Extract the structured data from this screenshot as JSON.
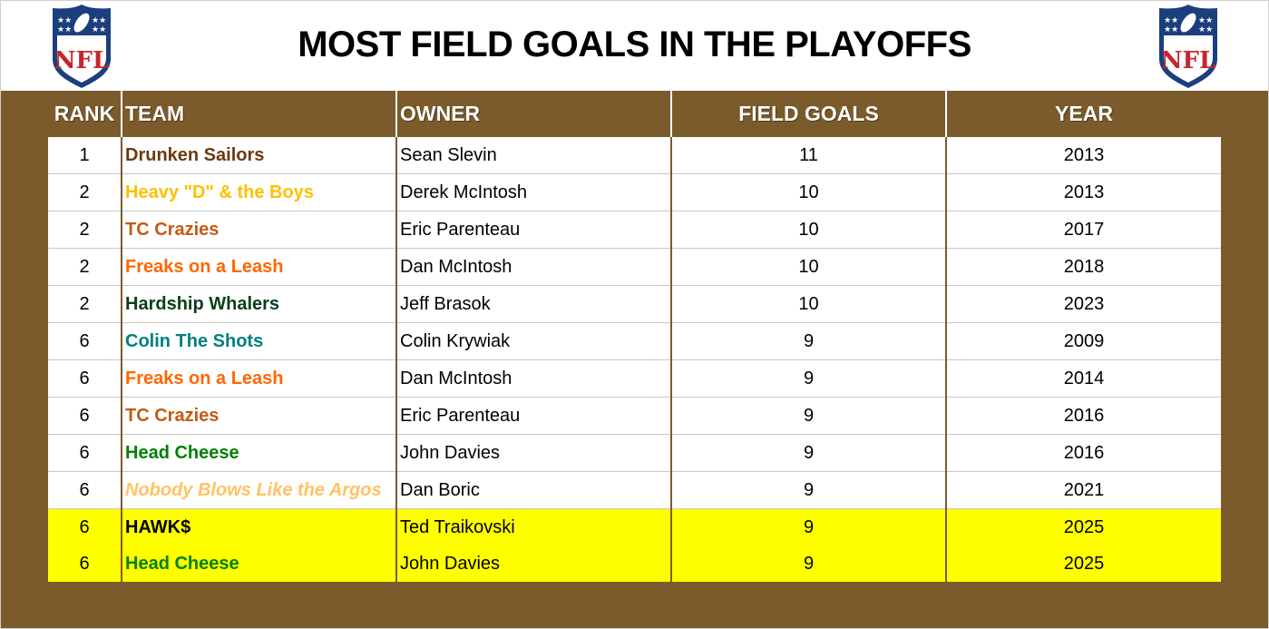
{
  "header": {
    "title": "MOST FIELD GOALS IN THE PLAYOFFS",
    "logo_left": "nfl-shield-logo",
    "logo_right": "nfl-shield-logo"
  },
  "colors": {
    "brand_brown": "#7b5b2c",
    "highlight_yellow": "#ffff00",
    "nfl_blue": "#1b3f7e",
    "nfl_red": "#c6252e"
  },
  "table": {
    "columns": [
      "RANK",
      "TEAM",
      "OWNER",
      "FIELD GOALS",
      "YEAR"
    ],
    "rows": [
      {
        "rank": "1",
        "team": "Drunken Sailors",
        "team_color": "#6b3a0f",
        "italic": false,
        "owner": "Sean Slevin",
        "field_goals": "11",
        "year": "2013",
        "highlight": false
      },
      {
        "rank": "2",
        "team": "Heavy \"D\" & the Boys",
        "team_color": "#ffc000",
        "italic": false,
        "owner": "Derek McIntosh",
        "field_goals": "10",
        "year": "2013",
        "highlight": false
      },
      {
        "rank": "2",
        "team": "TC Crazies",
        "team_color": "#c55a11",
        "italic": false,
        "owner": "Eric Parenteau",
        "field_goals": "10",
        "year": "2017",
        "highlight": false
      },
      {
        "rank": "2",
        "team": "Freaks on a Leash",
        "team_color": "#ff6600",
        "italic": false,
        "owner": "Dan McIntosh",
        "field_goals": "10",
        "year": "2018",
        "highlight": false
      },
      {
        "rank": "2",
        "team": "Hardship Whalers",
        "team_color": "#0b3d1c",
        "italic": false,
        "owner": "Jeff Brasok",
        "field_goals": "10",
        "year": "2023",
        "highlight": false
      },
      {
        "rank": "6",
        "team": "Colin The Shots",
        "team_color": "#008080",
        "italic": false,
        "owner": "Colin Krywiak",
        "field_goals": "9",
        "year": "2009",
        "highlight": false
      },
      {
        "rank": "6",
        "team": "Freaks on a Leash",
        "team_color": "#ff6600",
        "italic": false,
        "owner": "Dan McIntosh",
        "field_goals": "9",
        "year": "2014",
        "highlight": false
      },
      {
        "rank": "6",
        "team": "TC Crazies",
        "team_color": "#c55a11",
        "italic": false,
        "owner": "Eric Parenteau",
        "field_goals": "9",
        "year": "2016",
        "highlight": false
      },
      {
        "rank": "6",
        "team": "Head Cheese",
        "team_color": "#008000",
        "italic": false,
        "owner": "John Davies",
        "field_goals": "9",
        "year": "2016",
        "highlight": false
      },
      {
        "rank": "6",
        "team": "Nobody Blows Like the Argos",
        "team_color": "#ffc266",
        "italic": true,
        "owner": "Dan Boric",
        "field_goals": "9",
        "year": "2021",
        "highlight": false
      },
      {
        "rank": "6",
        "team": "HAWK$",
        "team_color": "#000000",
        "italic": false,
        "owner": "Ted Traikovski",
        "field_goals": "9",
        "year": "2025",
        "highlight": true
      },
      {
        "rank": "6",
        "team": "Head Cheese",
        "team_color": "#008000",
        "italic": false,
        "owner": "John Davies",
        "field_goals": "9",
        "year": "2025",
        "highlight": true
      }
    ]
  }
}
